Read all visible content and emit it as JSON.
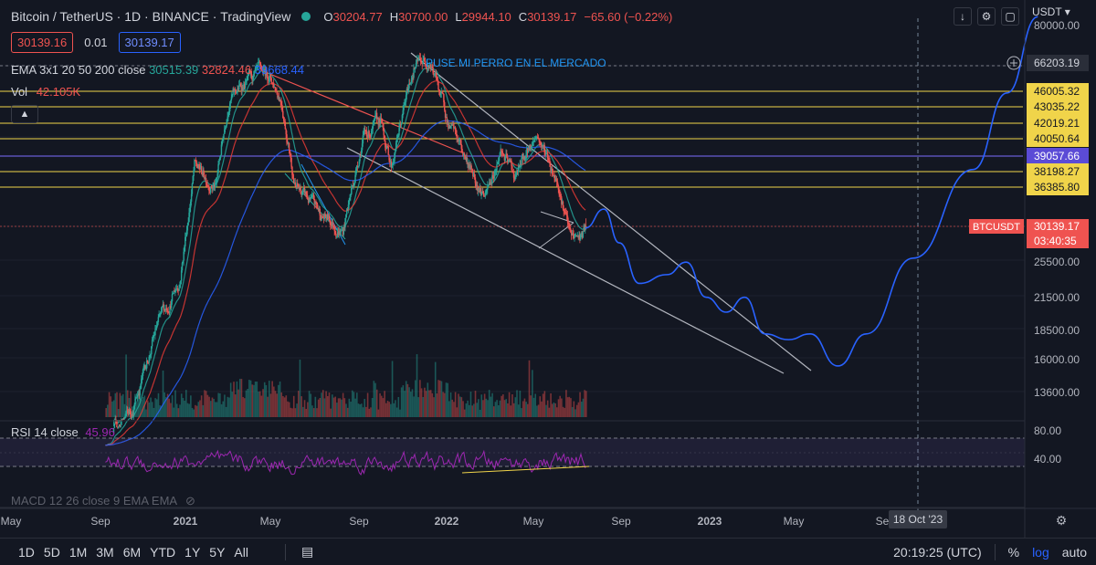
{
  "header": {
    "symbol": "Bitcoin / TetherUS",
    "interval": "1D",
    "exchange": "BINANCE",
    "brand": "TradingView",
    "ohlc": {
      "o_key": "O",
      "o_val": "30204.77",
      "h_key": "H",
      "h_val": "30700.00",
      "l_key": "L",
      "l_val": "29944.10",
      "c_key": "C",
      "c_val": "30139.17"
    },
    "change": "−65.60 (−0.22%)"
  },
  "quote": {
    "bid": "30139.16",
    "spread": "0.01",
    "ask": "30139.17"
  },
  "indicators": {
    "ema_label": "EMA 3x1 20 50 200 close",
    "ema_v1": "30515.39",
    "ema_v2": "32824.46",
    "ema_v3": "39668.44",
    "vol_label": "Vol",
    "vol_value": "42.105K",
    "rsi_label": "RSI 14 close",
    "rsi_value": "45.96",
    "macd_label": "MACD 12 26 close 9 EMA EMA"
  },
  "annotation_text": "PUSE MI PERRO EN EL MERCADO",
  "price_scale": {
    "currency": "USDT",
    "ticks": [
      "80000.00",
      "25500.00",
      "21500.00",
      "18500.00",
      "16000.00",
      "13600.00"
    ],
    "hline_labels": [
      "66203.19",
      "46005.32",
      "43035.22",
      "42019.21",
      "40050.64",
      "39057.66",
      "38198.27",
      "36385.80"
    ],
    "last_symbol": "BTCUSDT",
    "last_price": "30139.17",
    "countdown": "03:40:35",
    "rsi_ticks": [
      "80.00",
      "40.00"
    ]
  },
  "time_axis": {
    "ticks": [
      "May",
      "Sep",
      "2021",
      "May",
      "Sep",
      "2022",
      "May",
      "Sep",
      "2023",
      "May",
      "Se"
    ],
    "cursor_label": "18 Oct '23"
  },
  "bottom": {
    "timeframes": [
      "1D",
      "5D",
      "1M",
      "3M",
      "6M",
      "YTD",
      "1Y",
      "5Y",
      "All"
    ],
    "clock": "20:19:25 (UTC)",
    "pct": "%",
    "log": "log",
    "auto": "auto"
  },
  "colors": {
    "bg": "#131722",
    "up": "#26a69a",
    "down": "#ef5350",
    "ema20": "#26a69a",
    "ema50": "#e53935",
    "ema200": "#2962ff",
    "hline": "#f0d44a",
    "rsi": "#9c27b0",
    "projection": "#2962ff"
  },
  "chart_data": {
    "type": "candlestick",
    "symbol": "BTCUSDT",
    "interval": "1D",
    "scale": "log",
    "ylim": [
      12500,
      90000
    ],
    "x_range": [
      "2020-05-01",
      "2023-12-31"
    ],
    "close_path": [
      [
        "2020-09-15",
        10700
      ],
      [
        "2020-10-20",
        12500
      ],
      [
        "2020-11-20",
        18500
      ],
      [
        "2020-12-20",
        23500
      ],
      [
        "2021-01-08",
        40500
      ],
      [
        "2021-02-05",
        37000
      ],
      [
        "2021-02-21",
        56000
      ],
      [
        "2021-03-13",
        60500
      ],
      [
        "2021-04-14",
        63500
      ],
      [
        "2021-05-01",
        57000
      ],
      [
        "2021-05-19",
        37000
      ],
      [
        "2021-06-22",
        32000
      ],
      [
        "2021-07-20",
        29800
      ],
      [
        "2021-08-15",
        47000
      ],
      [
        "2021-09-07",
        50000
      ],
      [
        "2021-09-21",
        41000
      ],
      [
        "2021-10-20",
        66000
      ],
      [
        "2021-11-10",
        68800
      ],
      [
        "2021-12-05",
        49500
      ],
      [
        "2022-01-22",
        35000
      ],
      [
        "2022-02-10",
        44000
      ],
      [
        "2022-03-01",
        38500
      ],
      [
        "2022-03-29",
        47500
      ],
      [
        "2022-04-26",
        38000
      ],
      [
        "2022-05-12",
        28500
      ],
      [
        "2022-05-27",
        29000
      ],
      [
        "2022-06-01",
        30139.17
      ]
    ],
    "last_price": 30139.17,
    "horizontal_levels": [
      66203.19,
      46005.32,
      43035.22,
      42019.21,
      40050.64,
      39057.66,
      38198.27,
      36385.8
    ],
    "projection_path": [
      [
        "2022-06-01",
        30100
      ],
      [
        "2022-06-25",
        33000
      ],
      [
        "2022-07-15",
        28000
      ],
      [
        "2022-08-10",
        23000
      ],
      [
        "2022-09-15",
        24000
      ],
      [
        "2022-10-10",
        25500
      ],
      [
        "2022-11-05",
        21500
      ],
      [
        "2022-12-01",
        20000
      ],
      [
        "2022-12-25",
        21500
      ],
      [
        "2023-01-20",
        18000
      ],
      [
        "2023-02-20",
        17500
      ],
      [
        "2023-03-20",
        18000
      ],
      [
        "2023-04-25",
        15400
      ],
      [
        "2023-06-01",
        18000
      ],
      [
        "2023-08-01",
        26000
      ],
      [
        "2023-10-18",
        40000
      ],
      [
        "2023-12-01",
        58000
      ],
      [
        "2024-01-10",
        84000
      ]
    ],
    "rsi": {
      "period": 14,
      "last": 45.96,
      "levels": [
        80,
        40
      ]
    }
  }
}
